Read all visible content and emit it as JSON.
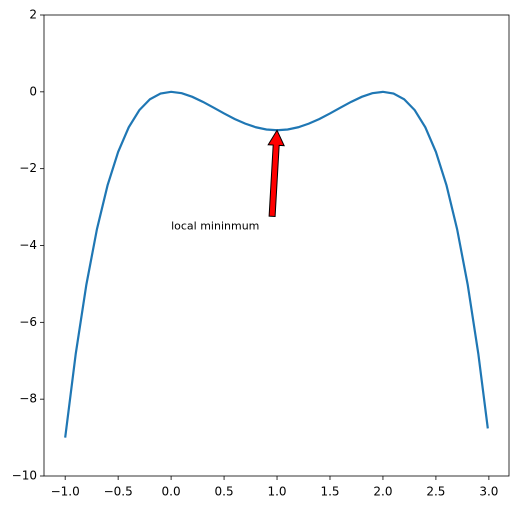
{
  "chart_data": {
    "type": "line",
    "x": [
      -1.0,
      -0.9,
      -0.8,
      -0.7,
      -0.6,
      -0.5,
      -0.4,
      -0.3,
      -0.2,
      -0.1,
      0.0,
      0.1,
      0.2,
      0.3,
      0.4,
      0.5,
      0.6,
      0.7,
      0.8,
      0.9,
      1.0,
      1.1,
      1.2,
      1.3,
      1.4,
      1.5,
      1.6,
      1.7,
      1.8,
      1.9,
      2.0,
      2.1,
      2.2,
      2.3,
      2.4,
      2.5,
      2.6,
      2.7,
      2.8,
      2.9,
      2.99
    ],
    "series": [
      {
        "color": "#1f77b4",
        "values": [
          -9,
          -6.812,
          -5.018,
          -3.572,
          -2.434,
          -1.563,
          -0.922,
          -0.476,
          -0.194,
          -0.044,
          0,
          -0.036,
          -0.13,
          -0.26,
          -0.41,
          -0.563,
          -0.706,
          -0.828,
          -0.922,
          -0.98,
          -1,
          -0.98,
          -0.922,
          -0.828,
          -0.706,
          -0.563,
          -0.41,
          -0.26,
          -0.13,
          -0.036,
          0,
          -0.044,
          -0.194,
          -0.476,
          -0.922,
          -1.563,
          -2.434,
          -3.572,
          -5.018,
          -6.812,
          -8.762
        ]
      }
    ],
    "xlim": [
      -1.2,
      3.19
    ],
    "ylim": [
      -10,
      2
    ],
    "xticks": [
      {
        "value": -1,
        "label": "−1.0"
      },
      {
        "value": -0.5,
        "label": "−0.5"
      },
      {
        "value": 0,
        "label": "0.0"
      },
      {
        "value": 0.5,
        "label": "0.5"
      },
      {
        "value": 1,
        "label": "1.0"
      },
      {
        "value": 1.5,
        "label": "1.5"
      },
      {
        "value": 2,
        "label": "2.0"
      },
      {
        "value": 2.5,
        "label": "2.5"
      },
      {
        "value": 3,
        "label": "3.0"
      }
    ],
    "yticks": [
      2,
      0,
      {
        "value": -2,
        "label": "−2"
      },
      {
        "value": -4,
        "label": "−4"
      },
      {
        "value": -6,
        "label": "−6"
      },
      {
        "value": -8,
        "label": "−8"
      },
      {
        "value": -10,
        "label": "−10"
      }
    ],
    "annotation": {
      "text": "local mininmum",
      "xy": [
        1,
        -1
      ],
      "xytext": [
        0,
        -3.5
      ],
      "arrow_color": "#ff0000"
    }
  }
}
